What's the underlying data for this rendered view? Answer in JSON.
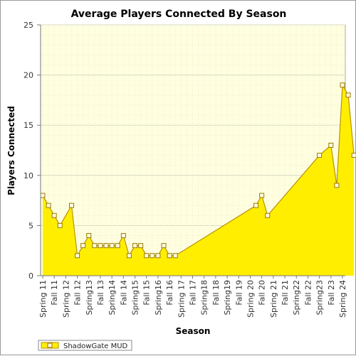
{
  "chart_data": {
    "type": "area",
    "title": "Average Players Connected By Season",
    "xlabel": "Season",
    "ylabel": "Players Connected",
    "ylim": [
      0,
      25
    ],
    "yticks": [
      0,
      5,
      10,
      15,
      20,
      25
    ],
    "grid": true,
    "legend_position": "bottom-left",
    "colors": {
      "fill": "#ffee00",
      "line": "#b89200",
      "marker_fill": "#fffbe0",
      "plot_bg": "#ffffe0"
    },
    "categories": [
      "Spring 11",
      "Fall 11",
      "Spring 12",
      "Fall 12",
      "Spring13",
      "Fall 13",
      "Spring14",
      "Fall 14",
      "Spring15",
      "Fall 15",
      "Spring16",
      "Fall 16",
      "Spring 17",
      "Fall 17",
      "Spring18",
      "Fall 18",
      "Spring19",
      "Fall 19",
      "Spring 20",
      "Fall 20",
      "Spring 21",
      "Fall 21",
      "Spring22",
      "Fall 22",
      "Spring23",
      "Fall 23",
      "Spring 24"
    ],
    "series": [
      {
        "name": "ShadowGate MUD",
        "points": [
          [
            0,
            8
          ],
          [
            0.5,
            7
          ],
          [
            1,
            6
          ],
          [
            1.5,
            5
          ],
          [
            2.5,
            7
          ],
          [
            3,
            2
          ],
          [
            3.5,
            3
          ],
          [
            4,
            4
          ],
          [
            4.5,
            3
          ],
          [
            5,
            3
          ],
          [
            5.5,
            3
          ],
          [
            6,
            3
          ],
          [
            6.5,
            3
          ],
          [
            7,
            4
          ],
          [
            7.5,
            2
          ],
          [
            8,
            3
          ],
          [
            8.5,
            3
          ],
          [
            9,
            2
          ],
          [
            9.5,
            2
          ],
          [
            10,
            2
          ],
          [
            10.5,
            3
          ],
          [
            11,
            2
          ],
          [
            11.5,
            2
          ],
          [
            18.5,
            7
          ],
          [
            19,
            8
          ],
          [
            19.5,
            6
          ],
          [
            24,
            12
          ],
          [
            25,
            13
          ],
          [
            25.5,
            9
          ],
          [
            26,
            19
          ],
          [
            26.5,
            18
          ],
          [
            27,
            12
          ]
        ]
      }
    ]
  }
}
